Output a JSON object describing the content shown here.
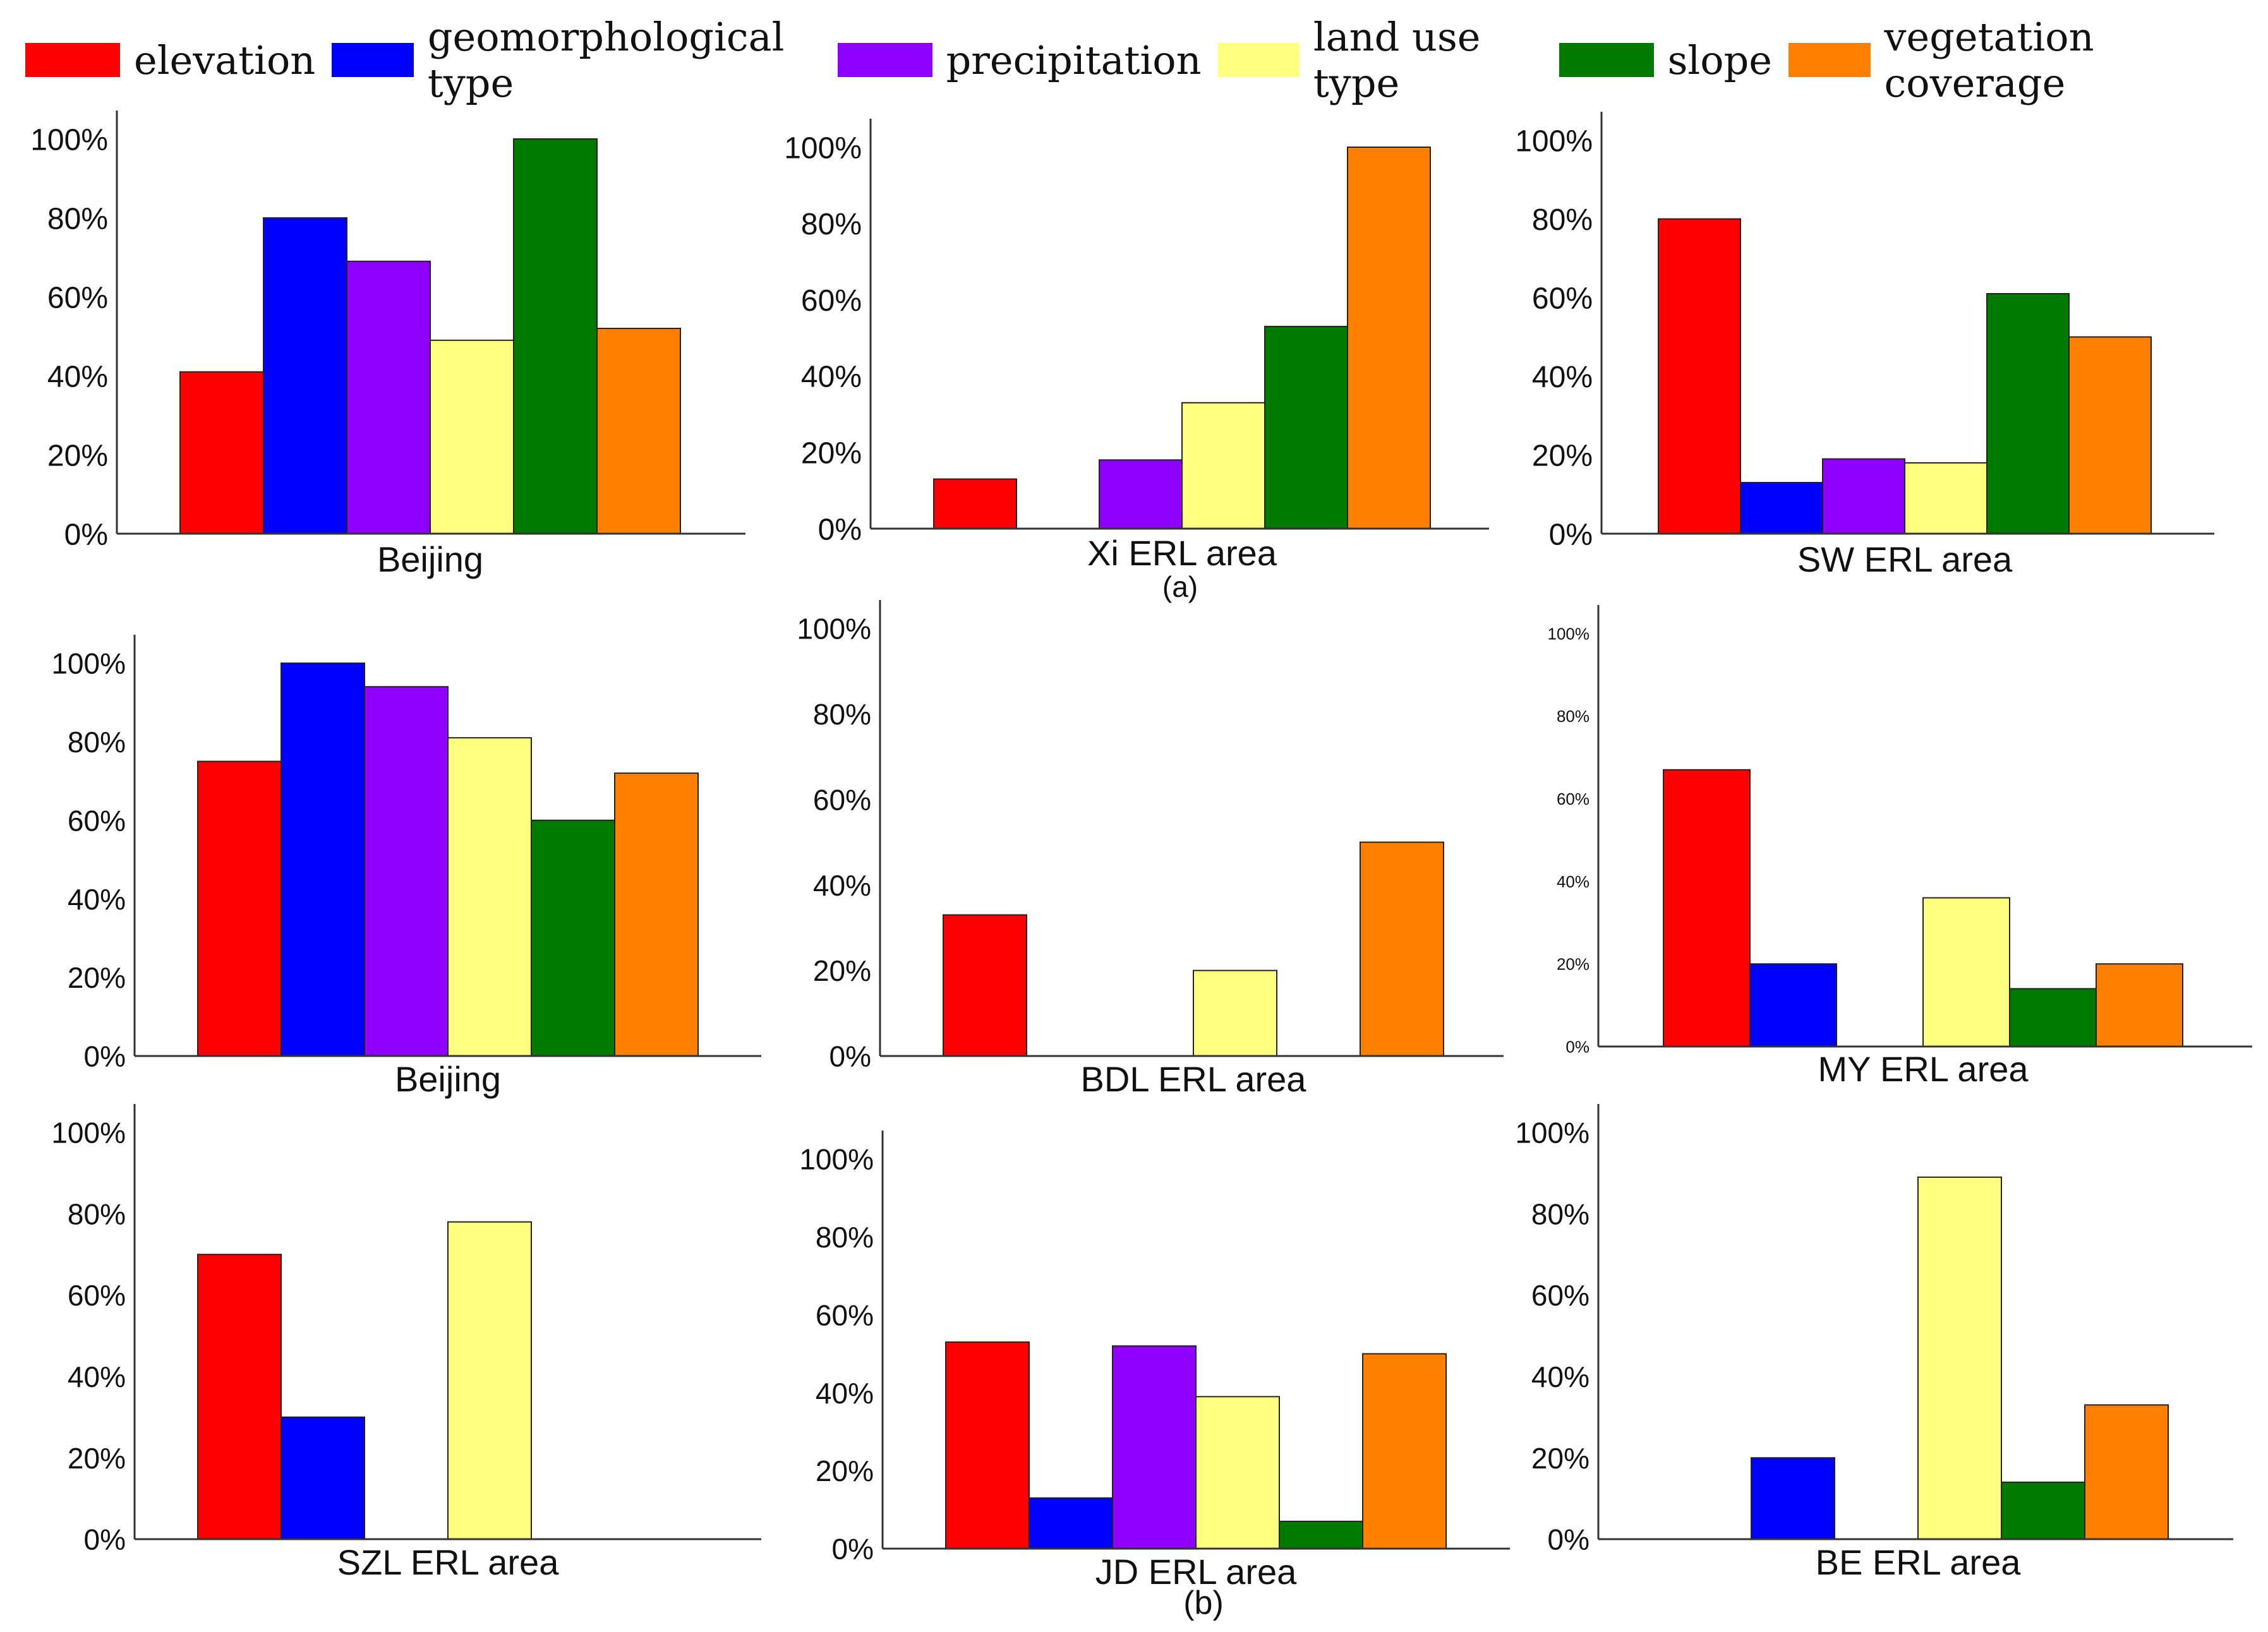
{
  "legend": [
    {
      "label": "elevation",
      "color": "#ff0000"
    },
    {
      "label": "geomorphological type",
      "color": "#0000ff"
    },
    {
      "label": "precipitation",
      "color": "#8f00ff"
    },
    {
      "label": "land use type",
      "color": "#ffff80"
    },
    {
      "label": "slope",
      "color": "#007a00"
    },
    {
      "label": "vegetation coverage",
      "color": "#ff8000"
    }
  ],
  "group_labels": {
    "a": "(a)",
    "b": "(b)"
  },
  "chart_data": [
    {
      "type": "bar",
      "title": "Beijing",
      "categories": [
        "elevation",
        "geomorphological type",
        "precipitation",
        "land use type",
        "slope",
        "vegetation coverage"
      ],
      "values": [
        41,
        80,
        69,
        49,
        100,
        52
      ],
      "ylim": [
        0,
        100
      ],
      "yticks": [
        "0%",
        "20%",
        "40%",
        "60%",
        "80%",
        "100%"
      ]
    },
    {
      "type": "bar",
      "title": "Xi ERL area",
      "categories": [
        "elevation",
        "geomorphological type",
        "precipitation",
        "land use type",
        "slope",
        "vegetation coverage"
      ],
      "values": [
        13,
        0,
        18,
        33,
        53,
        100
      ],
      "ylim": [
        0,
        100
      ],
      "yticks": [
        "0%",
        "20%",
        "40%",
        "60%",
        "80%",
        "100%"
      ]
    },
    {
      "type": "bar",
      "title": "SW ERL area",
      "categories": [
        "elevation",
        "geomorphological type",
        "precipitation",
        "land use type",
        "slope",
        "vegetation coverage"
      ],
      "values": [
        80,
        13,
        19,
        18,
        61,
        50
      ],
      "ylim": [
        0,
        100
      ],
      "yticks": [
        "0%",
        "20%",
        "40%",
        "60%",
        "80%",
        "100%"
      ]
    },
    {
      "type": "bar",
      "title": "Beijing",
      "categories": [
        "elevation",
        "geomorphological type",
        "precipitation",
        "land use type",
        "slope",
        "vegetation coverage"
      ],
      "values": [
        75,
        100,
        94,
        81,
        60,
        72
      ],
      "ylim": [
        0,
        100
      ],
      "yticks": [
        "0%",
        "20%",
        "40%",
        "60%",
        "80%",
        "100%"
      ]
    },
    {
      "type": "bar",
      "title": "BDL ERL area",
      "categories": [
        "elevation",
        "geomorphological type",
        "precipitation",
        "land use type",
        "slope",
        "vegetation coverage"
      ],
      "values": [
        33,
        0,
        0,
        20,
        0,
        50
      ],
      "ylim": [
        0,
        100
      ],
      "yticks": [
        "0%",
        "20%",
        "40%",
        "60%",
        "80%",
        "100%"
      ]
    },
    {
      "type": "bar",
      "title": "MY ERL area",
      "categories": [
        "elevation",
        "geomorphological type",
        "precipitation",
        "land use type",
        "slope",
        "vegetation coverage"
      ],
      "values": [
        67,
        20,
        0,
        36,
        14,
        20
      ],
      "ylim": [
        0,
        100
      ],
      "yticks": [
        "0%",
        "20%",
        "40%",
        "60%",
        "80%",
        "100%"
      ]
    },
    {
      "type": "bar",
      "title": "SZL ERL area",
      "categories": [
        "elevation",
        "geomorphological type",
        "precipitation",
        "land use type",
        "slope",
        "vegetation coverage"
      ],
      "values": [
        70,
        30,
        0,
        78,
        0,
        0
      ],
      "ylim": [
        0,
        100
      ],
      "yticks": [
        "0%",
        "20%",
        "40%",
        "60%",
        "80%",
        "100%"
      ]
    },
    {
      "type": "bar",
      "title": "JD ERL area",
      "categories": [
        "elevation",
        "geomorphological type",
        "precipitation",
        "land use type",
        "slope",
        "vegetation coverage"
      ],
      "values": [
        53,
        13,
        52,
        39,
        7,
        50
      ],
      "ylim": [
        0,
        100
      ],
      "yticks": [
        "0%",
        "20%",
        "40%",
        "60%",
        "80%",
        "100%"
      ]
    },
    {
      "type": "bar",
      "title": "BE ERL area",
      "categories": [
        "elevation",
        "geomorphological type",
        "precipitation",
        "land use type",
        "slope",
        "vegetation coverage"
      ],
      "values": [
        0,
        20,
        0,
        89,
        14,
        33
      ],
      "ylim": [
        0,
        100
      ],
      "yticks": [
        "0%",
        "20%",
        "40%",
        "60%",
        "80%",
        "100%"
      ]
    }
  ]
}
